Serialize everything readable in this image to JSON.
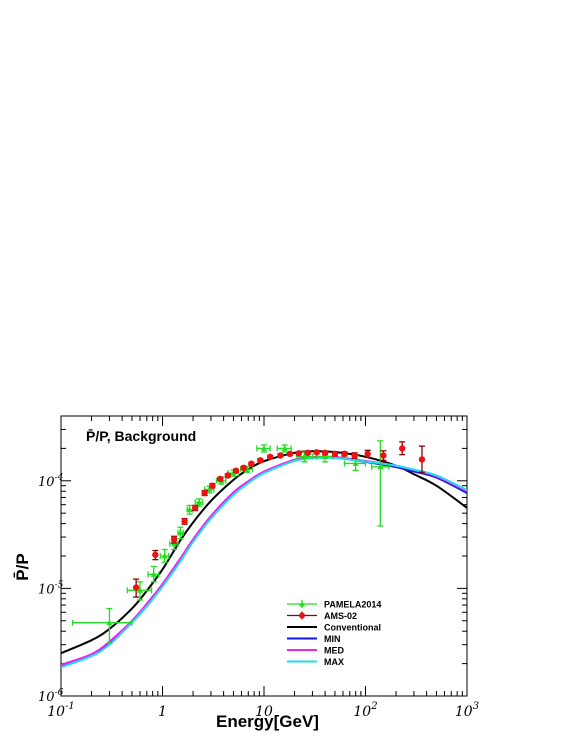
{
  "chart_data": {
    "type": "scatter",
    "title": "P̄/P, Background",
    "xlabel": "Energy[GeV]",
    "ylabel": "P̄/P",
    "xscale": "log",
    "yscale": "log",
    "xlim": [
      0.1,
      1000
    ],
    "ylim": [
      1e-06,
      0.0004
    ],
    "xticks": [
      {
        "value": 0.1,
        "base": "10",
        "exp": "-1"
      },
      {
        "value": 1,
        "base": "1",
        "exp": ""
      },
      {
        "value": 10,
        "base": "10",
        "exp": ""
      },
      {
        "value": 100,
        "base": "10",
        "exp": "2"
      },
      {
        "value": 1000,
        "base": "10",
        "exp": "3"
      }
    ],
    "yticks": [
      {
        "value": 1e-06,
        "base": "10",
        "exp": "-6"
      },
      {
        "value": 1e-05,
        "base": "10",
        "exp": "-5"
      },
      {
        "value": 0.0001,
        "base": "10",
        "exp": "-4"
      }
    ],
    "legend_position": "bottom-center",
    "series": [
      {
        "name": "PAMELA2014",
        "kind": "points",
        "marker": "triangle",
        "color": "#22dd22",
        "points": [
          {
            "x": 0.3,
            "y": 4.8e-06,
            "xlo": 0.13,
            "xhi": 0.5,
            "ylo": 3.1e-06,
            "yhi": 6.5e-06
          },
          {
            "x": 0.6,
            "y": 9.6e-06,
            "xlo": 0.45,
            "xhi": 0.78,
            "ylo": 7.8e-06,
            "yhi": 1.15e-05
          },
          {
            "x": 0.82,
            "y": 1.35e-05,
            "xlo": 0.72,
            "xhi": 0.92,
            "ylo": 1.15e-05,
            "yhi": 1.6e-05
          },
          {
            "x": 1.05,
            "y": 2e-05,
            "xlo": 0.95,
            "xhi": 1.15,
            "ylo": 1.75e-05,
            "yhi": 2.3e-05
          },
          {
            "x": 1.3,
            "y": 2.6e-05,
            "xlo": 1.18,
            "xhi": 1.42,
            "ylo": 2.3e-05,
            "yhi": 2.95e-05
          },
          {
            "x": 1.5,
            "y": 3.3e-05,
            "xlo": 1.42,
            "xhi": 1.6,
            "ylo": 2.9e-05,
            "yhi": 3.7e-05
          },
          {
            "x": 1.85,
            "y": 5.4e-05,
            "xlo": 1.75,
            "xhi": 2.0,
            "ylo": 4.9e-05,
            "yhi": 5.9e-05
          },
          {
            "x": 2.3,
            "y": 6.3e-05,
            "xlo": 2.1,
            "xhi": 2.5,
            "ylo": 5.8e-05,
            "yhi": 6.8e-05
          },
          {
            "x": 2.9,
            "y": 8.3e-05,
            "xlo": 2.6,
            "xhi": 3.2,
            "ylo": 7.7e-05,
            "yhi": 8.9e-05
          },
          {
            "x": 3.8,
            "y": 0.0001,
            "xlo": 3.4,
            "xhi": 4.2,
            "ylo": 9.3e-05,
            "yhi": 0.000108
          },
          {
            "x": 5.0,
            "y": 0.000118,
            "xlo": 4.4,
            "xhi": 5.6,
            "ylo": 0.00011,
            "yhi": 0.000126
          },
          {
            "x": 6.8,
            "y": 0.000128,
            "xlo": 5.9,
            "xhi": 7.7,
            "ylo": 0.00012,
            "yhi": 0.000136
          },
          {
            "x": 10.0,
            "y": 0.0002,
            "xlo": 8.5,
            "xhi": 11.5,
            "ylo": 0.000185,
            "yhi": 0.000215
          },
          {
            "x": 16.0,
            "y": 0.0002,
            "xlo": 13.5,
            "xhi": 18.5,
            "ylo": 0.000185,
            "yhi": 0.000215
          },
          {
            "x": 25.0,
            "y": 0.000168,
            "xlo": 21.0,
            "xhi": 30.0,
            "ylo": 0.00015,
            "yhi": 0.000185
          },
          {
            "x": 40.0,
            "y": 0.000168,
            "xlo": 33.0,
            "xhi": 48.0,
            "ylo": 0.00015,
            "yhi": 0.000185
          },
          {
            "x": 80.0,
            "y": 0.000145,
            "xlo": 62.0,
            "xhi": 100.0,
            "ylo": 0.000125,
            "yhi": 0.00017
          },
          {
            "x": 140.0,
            "y": 0.000135,
            "xlo": 115.0,
            "xhi": 170.0,
            "ylo": 3.8e-05,
            "yhi": 0.000235
          }
        ]
      },
      {
        "name": "AMS-02",
        "kind": "points",
        "marker": "circle",
        "color": "#ee1111",
        "errcolor": "#8b0000",
        "points": [
          {
            "x": 0.55,
            "y": 1.02e-05,
            "ylo": 8.3e-06,
            "yhi": 1.22e-05
          },
          {
            "x": 0.85,
            "y": 2.05e-05,
            "ylo": 1.85e-05,
            "yhi": 2.25e-05
          },
          {
            "x": 1.3,
            "y": 2.85e-05,
            "ylo": 2.65e-05,
            "yhi": 3.05e-05
          },
          {
            "x": 1.65,
            "y": 4.2e-05,
            "ylo": 3.95e-05,
            "yhi": 4.45e-05
          },
          {
            "x": 2.1,
            "y": 5.6e-05,
            "ylo": 5.3e-05,
            "yhi": 5.9e-05
          },
          {
            "x": 2.6,
            "y": 7.7e-05,
            "ylo": 7.3e-05,
            "yhi": 8.1e-05
          },
          {
            "x": 3.1,
            "y": 9e-05,
            "ylo": 8.6e-05,
            "yhi": 9.4e-05
          },
          {
            "x": 3.7,
            "y": 0.000104,
            "ylo": 0.0001,
            "yhi": 0.000108
          },
          {
            "x": 4.4,
            "y": 0.000112,
            "ylo": 0.000108,
            "yhi": 0.000116
          },
          {
            "x": 5.3,
            "y": 0.000124,
            "ylo": 0.00012,
            "yhi": 0.000128
          },
          {
            "x": 6.3,
            "y": 0.000132,
            "ylo": 0.000128,
            "yhi": 0.000136
          },
          {
            "x": 7.5,
            "y": 0.000144,
            "ylo": 0.00014,
            "yhi": 0.000148
          },
          {
            "x": 9.2,
            "y": 0.000155,
            "ylo": 0.00015,
            "yhi": 0.00016
          },
          {
            "x": 11.5,
            "y": 0.000167,
            "ylo": 0.000162,
            "yhi": 0.000172
          },
          {
            "x": 14.5,
            "y": 0.000172,
            "ylo": 0.000167,
            "yhi": 0.000177
          },
          {
            "x": 18.0,
            "y": 0.000178,
            "ylo": 0.000173,
            "yhi": 0.000183
          },
          {
            "x": 22.0,
            "y": 0.00018,
            "ylo": 0.000175,
            "yhi": 0.000185
          },
          {
            "x": 27.0,
            "y": 0.000182,
            "ylo": 0.000177,
            "yhi": 0.000187
          },
          {
            "x": 33.0,
            "y": 0.000184,
            "ylo": 0.000178,
            "yhi": 0.00019
          },
          {
            "x": 40.0,
            "y": 0.000182,
            "ylo": 0.000175,
            "yhi": 0.000189
          },
          {
            "x": 50.0,
            "y": 0.000178,
            "ylo": 0.00017,
            "yhi": 0.000186
          },
          {
            "x": 62.0,
            "y": 0.000178,
            "ylo": 0.00017,
            "yhi": 0.000186
          },
          {
            "x": 78.0,
            "y": 0.000172,
            "ylo": 0.000162,
            "yhi": 0.000182
          },
          {
            "x": 105.0,
            "y": 0.000178,
            "ylo": 0.000165,
            "yhi": 0.000192
          },
          {
            "x": 150.0,
            "y": 0.000172,
            "ylo": 0.000155,
            "yhi": 0.00019
          },
          {
            "x": 230.0,
            "y": 0.0002,
            "ylo": 0.000175,
            "yhi": 0.00023
          },
          {
            "x": 360.0,
            "y": 0.000158,
            "ylo": 0.00012,
            "yhi": 0.00021
          }
        ]
      },
      {
        "name": "Conventional",
        "kind": "curve",
        "color": "#000000",
        "x": [
          0.1,
          0.2,
          0.3,
          0.5,
          0.7,
          1,
          1.5,
          2,
          3,
          5,
          7,
          10,
          20,
          30,
          50,
          100,
          200,
          300,
          500,
          1000
        ],
        "y": [
          2.5e-06,
          3.3e-06,
          4.2e-06,
          6.5e-06,
          9.5e-06,
          1.5e-05,
          2.8e-05,
          4.1e-05,
          6.5e-05,
          0.000102,
          0.000128,
          0.000152,
          0.000182,
          0.000188,
          0.000185,
          0.000167,
          0.000138,
          0.000115,
          9e-05,
          5.6e-05
        ]
      },
      {
        "name": "MIN",
        "kind": "curve",
        "color": "#1515ee",
        "x": [
          0.1,
          0.2,
          0.3,
          0.5,
          0.7,
          1,
          1.5,
          2,
          3,
          5,
          7,
          10,
          20,
          30,
          50,
          100,
          200,
          300,
          500,
          1000
        ],
        "y": [
          1.9e-06,
          2.4e-06,
          3.1e-06,
          4.9e-06,
          7e-06,
          1.07e-05,
          1.85e-05,
          2.8e-05,
          4.6e-05,
          7.6e-05,
          9.7e-05,
          0.00012,
          0.000155,
          0.000164,
          0.000164,
          0.00015,
          0.000134,
          0.000122,
          0.000107,
          7.7e-05
        ]
      },
      {
        "name": "MED",
        "kind": "curve",
        "color": "#ee22ee",
        "x": [
          0.1,
          0.2,
          0.3,
          0.5,
          0.7,
          1,
          1.5,
          2,
          3,
          5,
          7,
          10,
          20,
          30,
          50,
          100,
          200,
          300,
          500,
          1000
        ],
        "y": [
          1.95e-06,
          2.45e-06,
          3.2e-06,
          5e-06,
          7.2e-06,
          1.1e-05,
          1.9e-05,
          2.85e-05,
          4.7e-05,
          7.8e-05,
          9.9e-05,
          0.000122,
          0.000157,
          0.000166,
          0.000166,
          0.000153,
          0.000138,
          0.000126,
          0.00011,
          8e-05
        ]
      },
      {
        "name": "MAX",
        "kind": "curve",
        "color": "#22ddee",
        "x": [
          0.1,
          0.2,
          0.3,
          0.5,
          0.7,
          1,
          1.5,
          2,
          3,
          5,
          7,
          10,
          20,
          30,
          50,
          100,
          200,
          300,
          500,
          1000
        ],
        "y": [
          1.85e-06,
          2.35e-06,
          3e-06,
          4.8e-06,
          6.8e-06,
          1.04e-05,
          1.78e-05,
          2.7e-05,
          4.45e-05,
          7.4e-05,
          9.5e-05,
          0.000118,
          0.000153,
          0.000162,
          0.000163,
          0.000151,
          0.000138,
          0.000127,
          0.000112,
          8.2e-05
        ]
      }
    ]
  }
}
